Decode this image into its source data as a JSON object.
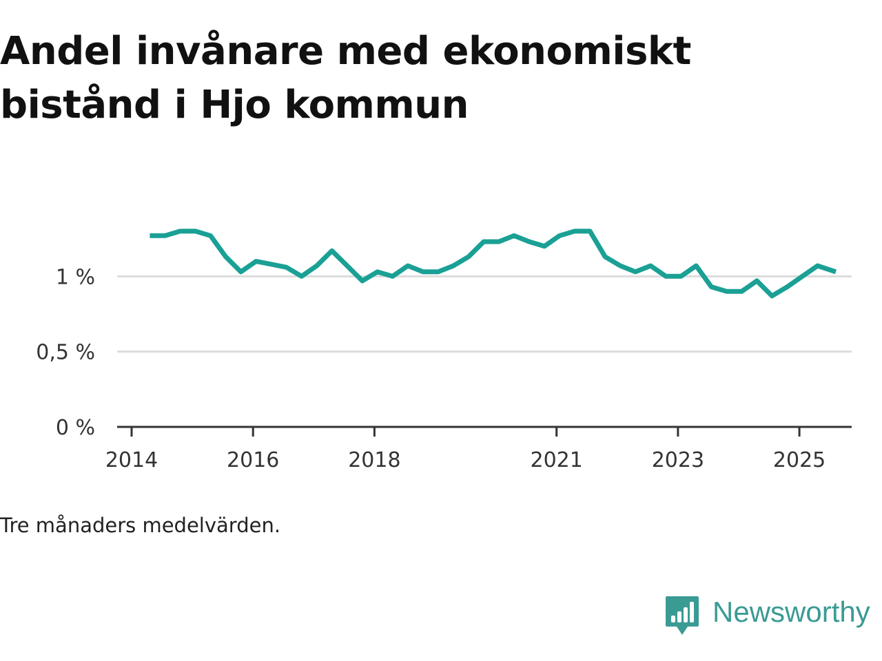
{
  "title": "Andel invånare med ekonomiskt bistånd i Hjo kommun",
  "note": "Tre månaders medelvärden.",
  "brand": {
    "name": "Newsworthy",
    "icon": "newsworthy-logo-icon"
  },
  "colors": {
    "line": "#1aa095",
    "grid": "#dcdcdc",
    "axis": "#333333",
    "brand": "#3a9b94"
  },
  "chart_data": {
    "type": "line",
    "title": "Andel invånare med ekonomiskt bistånd i Hjo kommun",
    "xlabel": "",
    "ylabel": "",
    "xlim": [
      2014,
      2026.1
    ],
    "ylim": [
      0,
      1.5
    ],
    "x_ticks": [
      {
        "value": 2014,
        "label": "2014"
      },
      {
        "value": 2016,
        "label": "2016"
      },
      {
        "value": 2018,
        "label": "2018"
      },
      {
        "value": 2021,
        "label": "2021"
      },
      {
        "value": 2023,
        "label": "2023"
      },
      {
        "value": 2025,
        "label": "2025"
      }
    ],
    "y_ticks": [
      {
        "value": 0,
        "label": "0 %"
      },
      {
        "value": 0.5,
        "label": "0,5 %"
      },
      {
        "value": 1,
        "label": "1 %"
      }
    ],
    "grid": true,
    "series": [
      {
        "name": "Andel invånare med ekonomiskt bistånd",
        "x": [
          2014.3,
          2014.55,
          2014.8,
          2015.05,
          2015.3,
          2015.55,
          2015.8,
          2016.05,
          2016.3,
          2016.55,
          2016.8,
          2017.05,
          2017.3,
          2017.55,
          2017.8,
          2018.05,
          2018.3,
          2018.55,
          2018.8,
          2019.05,
          2019.3,
          2019.55,
          2019.8,
          2020.05,
          2020.3,
          2020.55,
          2020.8,
          2021.05,
          2021.3,
          2021.55,
          2021.8,
          2022.05,
          2022.3,
          2022.55,
          2022.8,
          2023.05,
          2023.3,
          2023.55,
          2023.8,
          2024.05,
          2024.3,
          2024.55,
          2024.8,
          2025.05,
          2025.3,
          2025.6
        ],
        "values": [
          1.27,
          1.27,
          1.3,
          1.3,
          1.27,
          1.13,
          1.03,
          1.1,
          1.08,
          1.06,
          1.0,
          1.07,
          1.17,
          1.07,
          0.97,
          1.03,
          1.0,
          1.07,
          1.03,
          1.03,
          1.07,
          1.13,
          1.23,
          1.23,
          1.27,
          1.23,
          1.2,
          1.27,
          1.3,
          1.3,
          1.13,
          1.07,
          1.03,
          1.07,
          1.0,
          1.0,
          1.07,
          0.93,
          0.9,
          0.9,
          0.97,
          0.87,
          0.93,
          1.0,
          1.07,
          1.03
        ]
      }
    ]
  }
}
